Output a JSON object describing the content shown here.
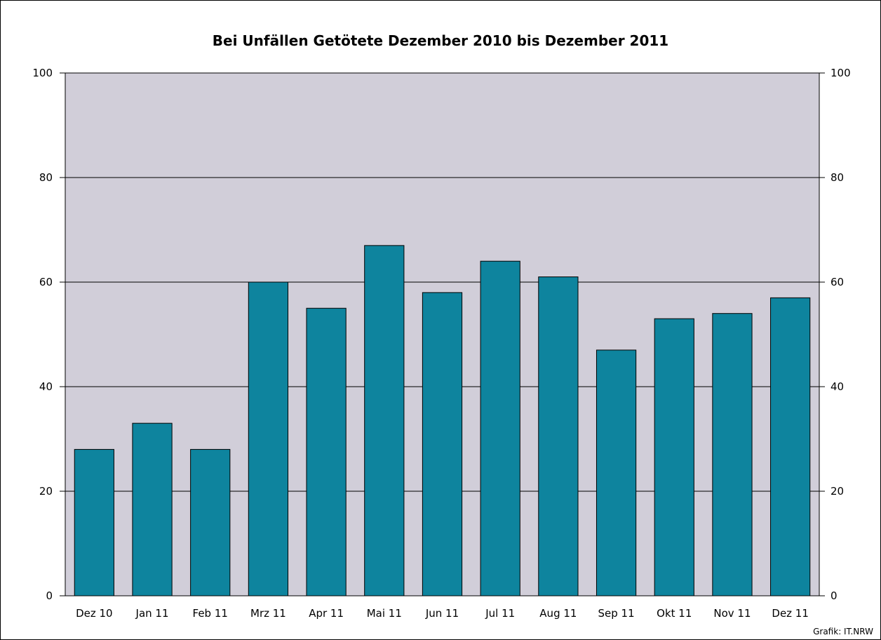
{
  "chart_data": {
    "type": "bar",
    "title": "Bei Unfällen Getötete Dezember 2010 bis Dezember 2011",
    "categories": [
      "Dez 10",
      "Jan 11",
      "Feb 11",
      "Mrz 11",
      "Apr 11",
      "Mai 11",
      "Jun 11",
      "Jul 11",
      "Aug 11",
      "Sep 11",
      "Okt 11",
      "Nov 11",
      "Dez 11"
    ],
    "values": [
      28,
      33,
      28,
      60,
      55,
      67,
      58,
      64,
      61,
      47,
      53,
      54,
      57
    ],
    "ylim": [
      0,
      100
    ],
    "yticks": [
      0,
      20,
      40,
      60,
      80,
      100
    ],
    "xlabel": "",
    "ylabel": "",
    "grid": true,
    "right_axis": true,
    "legend": "none",
    "colors": {
      "bar": "#0e849e",
      "plot_background": "#d1ced9",
      "grid": "#000000"
    },
    "source": "Grafik: IT.NRW"
  }
}
